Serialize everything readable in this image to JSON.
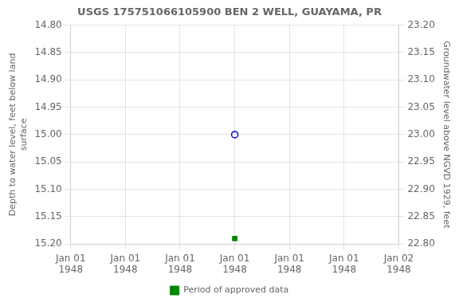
{
  "chart_data": {
    "type": "scatter",
    "title": "USGS 175751066105900 BEN 2 WELL, GUAYAMA, PR",
    "ylabel": "Depth to water level, feet below land\nsurface",
    "y2label": "Groundwater level above NGVD 1929, feet",
    "categories": [
      "Jan 01\n1948",
      "Jan 01\n1948",
      "Jan 01\n1948",
      "Jan 01\n1948",
      "Jan 01\n1948",
      "Jan 01\n1948",
      "Jan 02\n1948"
    ],
    "series": [
      {
        "color": "#0000cc",
        "marker": "open_circle",
        "values": [
          null,
          null,
          null,
          15.0,
          null,
          null,
          null
        ]
      },
      {
        "name": "Period of approved data",
        "color": "#008800",
        "marker": "square",
        "values": [
          null,
          null,
          null,
          15.19,
          null,
          null,
          null
        ]
      }
    ],
    "ylim": [
      15.2,
      14.8
    ],
    "yticks": [
      {
        "value": 14.8,
        "label": "14.80"
      },
      {
        "value": 14.85,
        "label": "14.85"
      },
      {
        "value": 14.9,
        "label": "14.90"
      },
      {
        "value": 14.95,
        "label": "14.95"
      },
      {
        "value": 15.0,
        "label": "15.00"
      },
      {
        "value": 15.05,
        "label": "15.05"
      },
      {
        "value": 15.1,
        "label": "15.10"
      },
      {
        "value": 15.15,
        "label": "15.15"
      },
      {
        "value": 15.2,
        "label": "15.20"
      }
    ],
    "y2lim": [
      22.8,
      23.2
    ],
    "y2ticks": [
      {
        "value": 23.2,
        "label": "23.20"
      },
      {
        "value": 23.15,
        "label": "23.15"
      },
      {
        "value": 23.1,
        "label": "23.10"
      },
      {
        "value": 23.05,
        "label": "23.05"
      },
      {
        "value": 23.0,
        "label": "23.00"
      },
      {
        "value": 22.95,
        "label": "22.95"
      },
      {
        "value": 22.9,
        "label": "22.90"
      },
      {
        "value": 22.85,
        "label": "22.85"
      },
      {
        "value": 22.8,
        "label": "22.80"
      }
    ],
    "grid": true,
    "legend": "bottom"
  }
}
